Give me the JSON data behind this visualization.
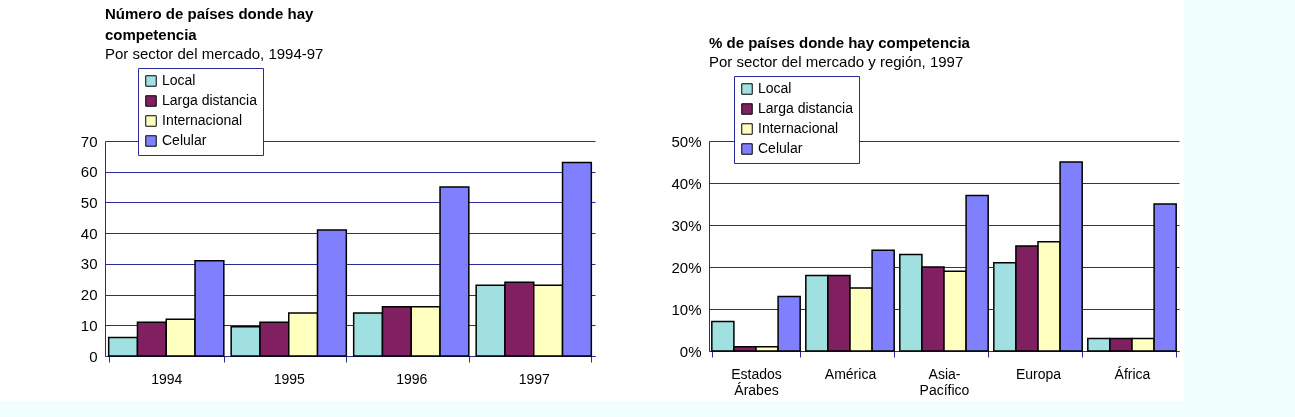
{
  "chart_data": [
    {
      "type": "bar",
      "title": "Número de países donde hay competencia",
      "subtitle": "Por sector del mercado, 1994-97",
      "categories": [
        "1994",
        "1995",
        "1996",
        "1997"
      ],
      "series": [
        {
          "name": "Local",
          "color": "#a0e0e0",
          "values": [
            6,
            9.5,
            14,
            23
          ]
        },
        {
          "name": "Larga distancia",
          "color": "#802060",
          "values": [
            11,
            11,
            16,
            24
          ]
        },
        {
          "name": "Internacional",
          "color": "#ffffc0",
          "values": [
            12,
            14,
            16,
            23
          ]
        },
        {
          "name": "Celular",
          "color": "#8080ff",
          "values": [
            31,
            41,
            55,
            63
          ]
        }
      ],
      "ylim": [
        0,
        70
      ],
      "yticks": [
        0,
        10,
        20,
        30,
        40,
        50,
        60,
        70
      ],
      "grid": "y",
      "legend": "top left"
    },
    {
      "type": "bar",
      "title": "% de países donde hay competencia",
      "subtitle": "Por sector del mercado y región, 1997",
      "categories": [
        "Estados Árabes",
        "América",
        "Asia-Pacífico",
        "Europa",
        "África"
      ],
      "series": [
        {
          "name": "Local",
          "color": "#a0e0e0",
          "values": [
            7,
            18,
            23,
            21,
            3
          ]
        },
        {
          "name": "Larga distancia",
          "color": "#802060",
          "values": [
            1,
            18,
            20,
            25,
            3
          ]
        },
        {
          "name": "Internacional",
          "color": "#ffffc0",
          "values": [
            1,
            15,
            19,
            26,
            3
          ]
        },
        {
          "name": "Celular",
          "color": "#8080ff",
          "values": [
            13,
            24,
            37,
            45,
            35
          ]
        }
      ],
      "ylim": [
        0,
        50
      ],
      "yticks": [
        {
          "value": 0,
          "label": "0%"
        },
        {
          "value": 10,
          "label": "10%"
        },
        {
          "value": 20,
          "label": "20%"
        },
        {
          "value": 30,
          "label": "30%"
        },
        {
          "value": 40,
          "label": "40%"
        },
        {
          "value": 50,
          "label": "50%"
        }
      ],
      "grid": "y",
      "legend": "top left"
    }
  ]
}
